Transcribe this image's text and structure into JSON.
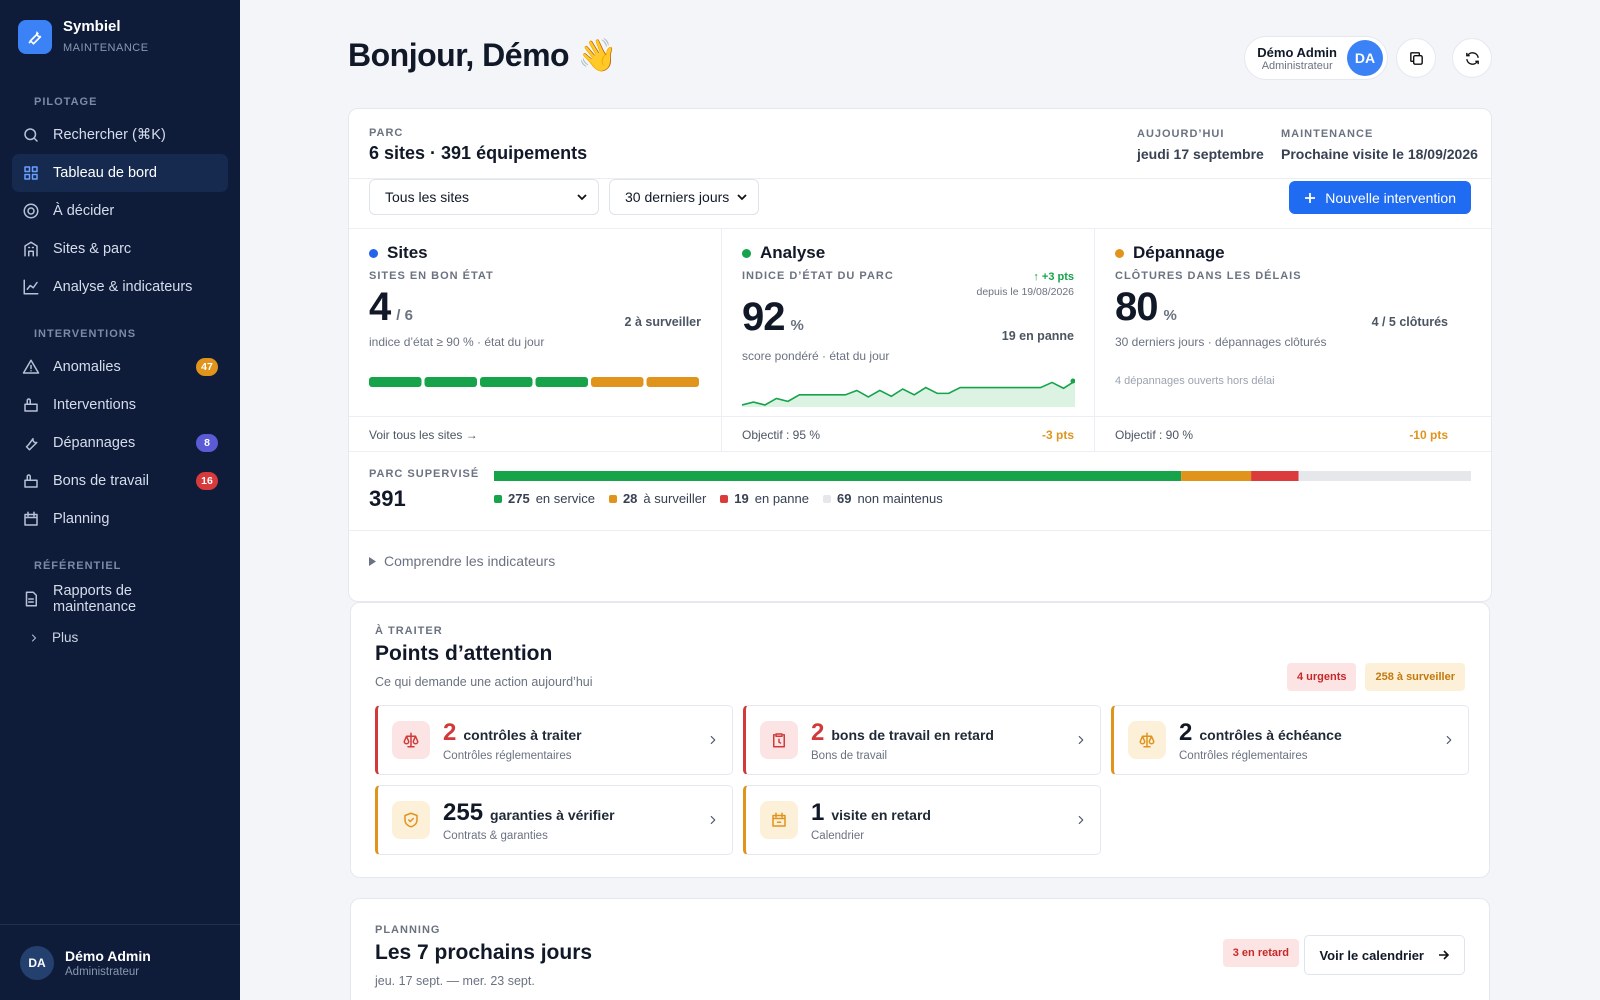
{
  "brand": {
    "initials": "",
    "name": "Symbiel",
    "sub": "MAINTENANCE"
  },
  "nav": [
    {
      "title": "PILOTAGE",
      "items": [
        {
          "label": "Rechercher (⌘K)"
        },
        {
          "label": "Tableau de bord",
          "active": true
        },
        {
          "label": "À décider"
        },
        {
          "label": "Sites & parc"
        },
        {
          "label": "Analyse & indicateurs"
        }
      ]
    },
    {
      "title": "INTERVENTIONS",
      "items": [
        {
          "label": "Anomalies",
          "badge": 47,
          "badge_color": "#e0941c"
        },
        {
          "label": "Interventions"
        },
        {
          "label": "Dépannages",
          "badge": 8,
          "badge_color": "#5b5bd6"
        },
        {
          "label": "Bons de travail",
          "badge": 16,
          "badge_color": "#d63a3a"
        },
        {
          "label": "Planning"
        }
      ]
    },
    {
      "title": "RÉFÉRENTIEL",
      "items": [
        {
          "label": "Rapports de maintenance"
        }
      ]
    }
  ],
  "more": "Plus",
  "user": {
    "initials": "DA",
    "name": "Démo Admin",
    "role": "Administrateur"
  },
  "header": {
    "greeting": "Bonjour, Démo 👋"
  },
  "parc": {
    "eyebrow": "PARC",
    "title": "6 sites · 391 équipements",
    "today_label": "AUJOURD’HUI",
    "today": "jeudi 17 septembre",
    "maint_label": "MAINTENANCE",
    "maint": "Prochaine visite le 18/09/2026",
    "filters": [
      "Tous les sites",
      "30 derniers jours"
    ],
    "new_button": "Nouvelle intervention"
  },
  "kpis": [
    {
      "title": "Sites",
      "color": "#2563eb",
      "label": "SITES EN BON ÉTAT",
      "value": 4,
      "unit": "/ 6",
      "side": "2 à surveiller",
      "note": "indice d’état ≥ 90 % · état du jour",
      "bar_colors": [
        "#16a34a",
        "#16a34a",
        "#16a34a",
        "#16a34a",
        "#e0941c",
        "#e0941c"
      ],
      "footer": "Voir tous les sites →"
    },
    {
      "title": "Analyse",
      "color": "#16a34a",
      "label": "INDICE D’ÉTAT DU PARC",
      "value": 92,
      "unit": "%",
      "delta": "↑ +3 pts",
      "since": "depuis le 19/08/2026",
      "side": "19 en panne",
      "note": "score pondéré · état du jour",
      "spark": [
        88,
        88.4,
        88,
        88.9,
        88.5,
        89.4,
        89.4,
        89.4,
        89.4,
        89.4,
        90,
        89.1,
        90,
        89.2,
        90.2,
        89.4,
        90.4,
        89.6,
        89.6,
        90.4,
        90.4,
        90.4,
        90.4,
        90.4,
        90.4,
        90.4,
        90.4,
        91.1,
        90.3,
        91.3
      ],
      "footer": "Objectif : 95 %",
      "footer_delta": "-3 pts"
    },
    {
      "title": "Dépannage",
      "color": "#e0941c",
      "label": "CLÔTURES DANS LES DÉLAIS",
      "value": 80,
      "unit": "%",
      "side": "4 / 5 clôturés",
      "note": "30 derniers jours · dépannages clôturés",
      "extra": "4 dépannages ouverts hors délai",
      "footer": "Objectif : 90 %",
      "footer_delta": "-10 pts"
    }
  ],
  "supervised": {
    "label": "PARC SUPERVISÉ",
    "total": 391,
    "segments": [
      {
        "value": 275,
        "label": "en service",
        "color": "#16a34a"
      },
      {
        "value": 28,
        "label": "à surveiller",
        "color": "#e0941c"
      },
      {
        "value": 19,
        "label": "en panne",
        "color": "#dc3b3b"
      },
      {
        "value": 69,
        "label": "non maintenus",
        "color": "#e5e7eb"
      }
    ]
  },
  "explain": "Comprendre les indicateurs",
  "attention": {
    "eyebrow": "À TRAITER",
    "title": "Points d’attention",
    "subtitle": "Ce qui demande une action aujourd’hui",
    "badges": [
      {
        "text": "4 urgents",
        "color": "#c62828",
        "bg": "#fde4e4"
      },
      {
        "text": "258 à surveiller",
        "color": "#c27a0e",
        "bg": "#fdf0d8"
      }
    ],
    "items": [
      {
        "count": 2,
        "label": "contrôles à traiter",
        "sub": "Contrôles réglementaires",
        "color": "#d03a3a",
        "bg": "#fde4e4",
        "count_color": "#d03a3a"
      },
      {
        "count": 2,
        "label": "bons de travail en retard",
        "sub": "Bons de travail",
        "color": "#d03a3a",
        "bg": "#fde4e4",
        "count_color": "#d03a3a"
      },
      {
        "count": 2,
        "label": "contrôles à échéance",
        "sub": "Contrôles réglementaires",
        "color": "#e0941c",
        "bg": "#fdf0d8",
        "count_color": "#111827"
      },
      {
        "count": 255,
        "label": "garanties à vérifier",
        "sub": "Contrats & garanties",
        "color": "#e0941c",
        "bg": "#fdf0d8",
        "count_color": "#111827"
      },
      {
        "count": 1,
        "label": "visite en retard",
        "sub": "Calendrier",
        "color": "#e0941c",
        "bg": "#fdf0d8",
        "count_color": "#111827"
      }
    ]
  },
  "planning": {
    "eyebrow": "PLANNING",
    "title": "Les 7 prochains jours",
    "subtitle": "jeu. 17 sept. — mer. 23 sept.",
    "badge": "3 en retard",
    "button": "Voir le calendrier"
  }
}
